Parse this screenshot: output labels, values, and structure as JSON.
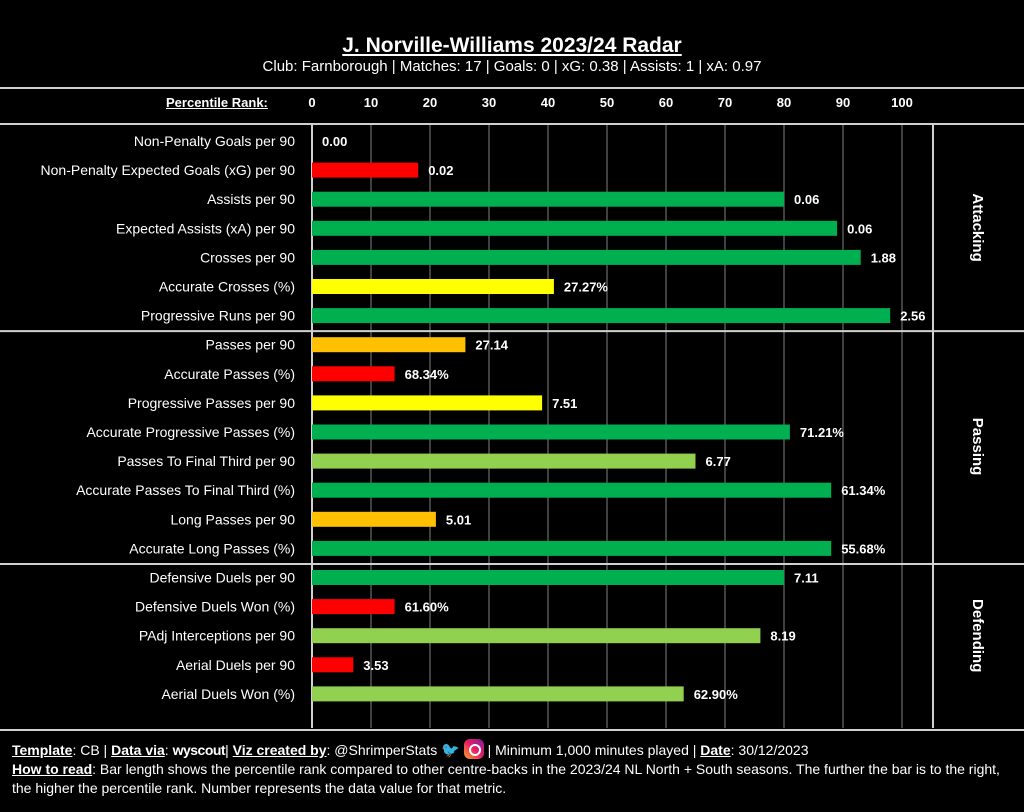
{
  "header": {
    "title": "J. Norville-Williams 2023/24 Radar",
    "subtitle": "Club: Farnborough | Matches: 17 | Goals: 0 | xG: 0.38 | Assists: 1 | xA: 0.97",
    "percentile_label": "Percentile Rank:"
  },
  "colors": {
    "green": "#00b050",
    "light_green": "#92d050",
    "yellow": "#ffff00",
    "orange": "#ffc000",
    "red": "#ff0000"
  },
  "chart_data": {
    "type": "bar",
    "orientation": "horizontal",
    "title": "J. Norville-Williams 2023/24 Radar",
    "xlabel": "Percentile Rank",
    "xlim": [
      0,
      100
    ],
    "xticks": [
      "0",
      "10",
      "20",
      "30",
      "40",
      "50",
      "60",
      "70",
      "80",
      "90",
      "100"
    ],
    "grid": true,
    "sections": [
      {
        "name": "Attacking",
        "metrics": [
          {
            "label": "Non-Penalty Goals per 90",
            "percentile": 0,
            "value": "0.00",
            "color": "#ff0000"
          },
          {
            "label": "Non-Penalty Expected Goals (xG) per 90",
            "percentile": 18,
            "value": "0.02",
            "color": "#ff0000"
          },
          {
            "label": "Assists per 90",
            "percentile": 80,
            "value": "0.06",
            "color": "#00b050"
          },
          {
            "label": "Expected Assists (xA) per 90",
            "percentile": 89,
            "value": "0.06",
            "color": "#00b050"
          },
          {
            "label": "Crosses per 90",
            "percentile": 93,
            "value": "1.88",
            "color": "#00b050"
          },
          {
            "label": "Accurate Crosses (%)",
            "percentile": 41,
            "value": "27.27%",
            "color": "#ffff00"
          },
          {
            "label": "Progressive Runs per 90",
            "percentile": 98,
            "value": "2.56",
            "color": "#00b050"
          }
        ]
      },
      {
        "name": "Passing",
        "metrics": [
          {
            "label": "Passes per 90",
            "percentile": 26,
            "value": "27.14",
            "color": "#ffc000"
          },
          {
            "label": "Accurate Passes (%)",
            "percentile": 14,
            "value": "68.34%",
            "color": "#ff0000"
          },
          {
            "label": "Progressive Passes per 90",
            "percentile": 39,
            "value": "7.51",
            "color": "#ffff00"
          },
          {
            "label": "Accurate Progressive Passes (%)",
            "percentile": 81,
            "value": "71.21%",
            "color": "#00b050"
          },
          {
            "label": "Passes To Final Third per 90",
            "percentile": 65,
            "value": "6.77",
            "color": "#92d050"
          },
          {
            "label": "Accurate Passes To Final Third (%)",
            "percentile": 88,
            "value": "61.34%",
            "color": "#00b050"
          },
          {
            "label": "Long Passes per 90",
            "percentile": 21,
            "value": "5.01",
            "color": "#ffc000"
          },
          {
            "label": "Accurate Long Passes (%)",
            "percentile": 88,
            "value": "55.68%",
            "color": "#00b050"
          }
        ]
      },
      {
        "name": "Defending",
        "metrics": [
          {
            "label": "Defensive Duels per 90",
            "percentile": 80,
            "value": "7.11",
            "color": "#00b050"
          },
          {
            "label": "Defensive Duels Won (%)",
            "percentile": 14,
            "value": "61.60%",
            "color": "#ff0000"
          },
          {
            "label": "PAdj Interceptions per 90",
            "percentile": 76,
            "value": "8.19",
            "color": "#92d050"
          },
          {
            "label": "Aerial Duels per 90",
            "percentile": 7,
            "value": "3.53",
            "color": "#ff0000"
          },
          {
            "label": "Aerial Duels Won (%)",
            "percentile": 63,
            "value": "62.90%",
            "color": "#92d050"
          }
        ]
      }
    ]
  },
  "footer": {
    "template_label": "Template",
    "template_value": ": CB | ",
    "data_via_label": "Data via",
    "data_via_sep": ": ",
    "data_source": "wyscout",
    "viz_label": "Viz created by",
    "viz_value": ": @ShrimperStats",
    "minimum": " | Minimum 1,000 minutes played | ",
    "date_label": "Date",
    "date_value": ": 30/12/2023",
    "how_label": "How to read",
    "how_text": ": Bar length shows the percentile rank compared to other centre-backs in the 2023/24 NL North + South seasons. The further the bar is to the right, the higher the percentile rank. Number represents the data value for that metric."
  }
}
